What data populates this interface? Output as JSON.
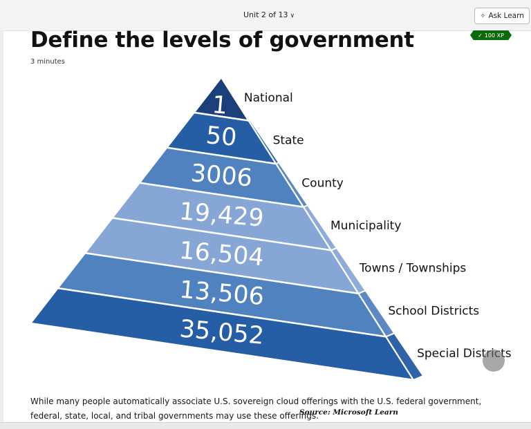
{
  "nav": {
    "unit": "Unit 2 of 13",
    "ask_label": "Ask Learn"
  },
  "page": {
    "title": "Define the levels of government",
    "duration": "3 minutes",
    "xp": "100 XP"
  },
  "pyramid": {
    "levels": [
      {
        "count": "1",
        "label": "National"
      },
      {
        "count": "50",
        "label": "State"
      },
      {
        "count": "3006",
        "label": "County"
      },
      {
        "count": "19,429",
        "label": "Municipality"
      },
      {
        "count": "16,504",
        "label": "Towns / Townships"
      },
      {
        "count": "13,506",
        "label": "School Districts"
      },
      {
        "count": "35,052",
        "label": "Special Districts"
      }
    ],
    "colors": [
      "#1b3f7a",
      "#265ea6",
      "#4f82bf",
      "#86a6d6",
      "#86a6d6",
      "#4f82bf",
      "#265ea6"
    ],
    "side_colors": [
      "#2f4f86",
      "#2f62a6",
      "#5d88c4",
      "#8fabd8",
      "#8fabd8",
      "#5d88c4",
      "#2f62a6"
    ]
  },
  "caption": {
    "text": "While many people automatically associate U.S. sovereign cloud offerings with the U.S. federal government, federal, state, local, and tribal governments may use these offerings.",
    "source": "Source: Microsoft Learn"
  },
  "icons": {
    "ask": "sparkle-icon",
    "chevron": "chevron-down-icon",
    "check": "check-icon"
  }
}
